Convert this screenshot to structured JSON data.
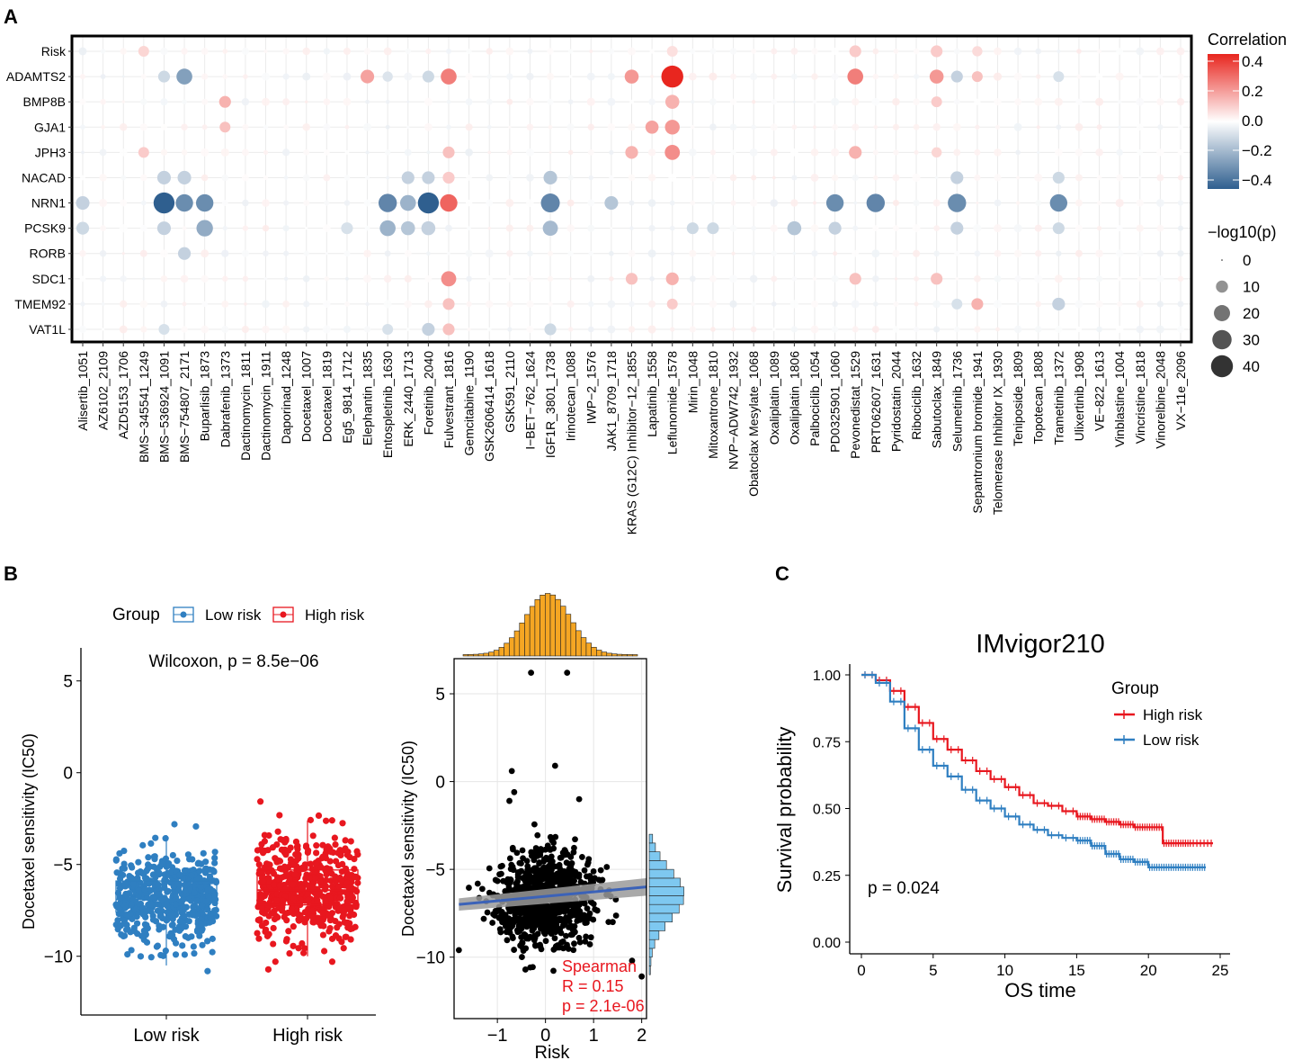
{
  "panels": {
    "a": "A",
    "b": "B",
    "c": "C"
  },
  "chart_data": [
    {
      "id": "A",
      "type": "bubble-heatmap",
      "rows": [
        "Risk",
        "ADAMTS2",
        "BMP8B",
        "GJA1",
        "JPH3",
        "NACAD",
        "NRN1",
        "PCSK9",
        "RORB",
        "SDC1",
        "TMEM92",
        "VAT1L"
      ],
      "columns": [
        "Alisertib_1051",
        "AZ6102_2109",
        "AZD5153_1706",
        "BMS−345541_1249",
        "BMS−536924_1091",
        "BMS−754807_2171",
        "Buparlisib_1873",
        "Dabrafenib_1373",
        "Dactinomycin_1811",
        "Dactinomycin_1911",
        "Daporinad_1248",
        "Docetaxel_1007",
        "Docetaxel_1819",
        "Eg5_9814_1712",
        "Elephantin_1835",
        "Entospletinib_1630",
        "ERK_2440_1713",
        "Foretinib_2040",
        "Fulvestrant_1816",
        "Gemcitabine_1190",
        "GSK2606414_1618",
        "GSK591_2110",
        "I−BET−762_1624",
        "IGF1R_3801_1738",
        "Irinotecan_1088",
        "IWP−2_1576",
        "JAK1_8709_1718",
        "KRAS (G12C) Inhibitor−12_1855",
        "Lapatinib_1558",
        "Leflunomide_1578",
        "Mirin_1048",
        "Mitoxantrone_1810",
        "NVP−ADW742_1932",
        "Obatoclax Mesylate_1068",
        "Oxaliplatin_1089",
        "Oxaliplatin_1806",
        "Palbociclib_1054",
        "PD0325901_1060",
        "Pevonedistat_1529",
        "PRT062607_1631",
        "Pyridostatin_2044",
        "Ribociclib_1632",
        "Sabutoclax_1849",
        "Selumetinib_1736",
        "Sepantronium bromide_1941",
        "Telomerase Inhibitor IX_1930",
        "Teniposide_1809",
        "Topotecan_1808",
        "Trametinib_1372",
        "Ulixertinib_1908",
        "VE−822_1613",
        "Vinblastine_1004",
        "Vincristine_1818",
        "Vinorelbine_2048",
        "VX−11e_2096"
      ],
      "values": [
        {
          "row": 0,
          "col": 3,
          "r": 0.08,
          "p": 8
        },
        {
          "row": 0,
          "col": 38,
          "r": 0.1,
          "p": 10
        },
        {
          "row": 0,
          "col": 42,
          "r": 0.1,
          "p": 10
        },
        {
          "row": 0,
          "col": 29,
          "r": 0.06,
          "p": 8
        },
        {
          "row": 0,
          "col": 44,
          "r": 0.07,
          "p": 7
        },
        {
          "row": 1,
          "col": 4,
          "r": -0.1,
          "p": 10
        },
        {
          "row": 1,
          "col": 5,
          "r": -0.25,
          "p": 20
        },
        {
          "row": 1,
          "col": 14,
          "r": 0.18,
          "p": 14
        },
        {
          "row": 1,
          "col": 15,
          "r": -0.07,
          "p": 7
        },
        {
          "row": 1,
          "col": 17,
          "r": -0.1,
          "p": 10
        },
        {
          "row": 1,
          "col": 18,
          "r": 0.25,
          "p": 20
        },
        {
          "row": 1,
          "col": 27,
          "r": 0.2,
          "p": 15
        },
        {
          "row": 1,
          "col": 29,
          "r": 0.42,
          "p": 42
        },
        {
          "row": 1,
          "col": 38,
          "r": 0.25,
          "p": 20
        },
        {
          "row": 1,
          "col": 42,
          "r": 0.2,
          "p": 15
        },
        {
          "row": 1,
          "col": 43,
          "r": -0.12,
          "p": 10
        },
        {
          "row": 1,
          "col": 44,
          "r": 0.12,
          "p": 8
        },
        {
          "row": 1,
          "col": 48,
          "r": -0.08,
          "p": 8
        },
        {
          "row": 2,
          "col": 7,
          "r": 0.15,
          "p": 10
        },
        {
          "row": 2,
          "col": 29,
          "r": 0.15,
          "p": 15
        },
        {
          "row": 2,
          "col": 42,
          "r": 0.1,
          "p": 8
        },
        {
          "row": 3,
          "col": 7,
          "r": 0.12,
          "p": 8
        },
        {
          "row": 3,
          "col": 28,
          "r": 0.18,
          "p": 13
        },
        {
          "row": 3,
          "col": 29,
          "r": 0.2,
          "p": 17
        },
        {
          "row": 4,
          "col": 3,
          "r": 0.1,
          "p": 8
        },
        {
          "row": 4,
          "col": 18,
          "r": 0.12,
          "p": 10
        },
        {
          "row": 4,
          "col": 27,
          "r": 0.15,
          "p": 12
        },
        {
          "row": 4,
          "col": 29,
          "r": 0.22,
          "p": 18
        },
        {
          "row": 4,
          "col": 38,
          "r": 0.15,
          "p": 12
        },
        {
          "row": 4,
          "col": 42,
          "r": 0.08,
          "p": 7
        },
        {
          "row": 5,
          "col": 4,
          "r": -0.12,
          "p": 14
        },
        {
          "row": 5,
          "col": 5,
          "r": -0.12,
          "p": 14
        },
        {
          "row": 5,
          "col": 16,
          "r": -0.12,
          "p": 12
        },
        {
          "row": 5,
          "col": 17,
          "r": -0.12,
          "p": 12
        },
        {
          "row": 5,
          "col": 18,
          "r": 0.1,
          "p": 10
        },
        {
          "row": 5,
          "col": 23,
          "r": -0.15,
          "p": 14
        },
        {
          "row": 5,
          "col": 43,
          "r": -0.12,
          "p": 12
        },
        {
          "row": 5,
          "col": 48,
          "r": -0.1,
          "p": 10
        },
        {
          "row": 6,
          "col": 0,
          "r": -0.12,
          "p": 14
        },
        {
          "row": 6,
          "col": 4,
          "r": -0.42,
          "p": 38
        },
        {
          "row": 6,
          "col": 5,
          "r": -0.3,
          "p": 25
        },
        {
          "row": 6,
          "col": 6,
          "r": -0.3,
          "p": 25
        },
        {
          "row": 6,
          "col": 15,
          "r": -0.32,
          "p": 28
        },
        {
          "row": 6,
          "col": 16,
          "r": -0.2,
          "p": 20
        },
        {
          "row": 6,
          "col": 17,
          "r": -0.42,
          "p": 38
        },
        {
          "row": 6,
          "col": 18,
          "r": 0.3,
          "p": 25
        },
        {
          "row": 6,
          "col": 23,
          "r": -0.32,
          "p": 30
        },
        {
          "row": 6,
          "col": 26,
          "r": -0.15,
          "p": 14
        },
        {
          "row": 6,
          "col": 37,
          "r": -0.3,
          "p": 25
        },
        {
          "row": 6,
          "col": 39,
          "r": -0.32,
          "p": 28
        },
        {
          "row": 6,
          "col": 43,
          "r": -0.3,
          "p": 28
        },
        {
          "row": 6,
          "col": 48,
          "r": -0.3,
          "p": 25
        },
        {
          "row": 7,
          "col": 0,
          "r": -0.1,
          "p": 12
        },
        {
          "row": 7,
          "col": 4,
          "r": -0.12,
          "p": 14
        },
        {
          "row": 7,
          "col": 6,
          "r": -0.22,
          "p": 22
        },
        {
          "row": 7,
          "col": 13,
          "r": -0.08,
          "p": 10
        },
        {
          "row": 7,
          "col": 15,
          "r": -0.2,
          "p": 20
        },
        {
          "row": 7,
          "col": 16,
          "r": -0.15,
          "p": 15
        },
        {
          "row": 7,
          "col": 17,
          "r": -0.12,
          "p": 15
        },
        {
          "row": 7,
          "col": 23,
          "r": -0.18,
          "p": 18
        },
        {
          "row": 7,
          "col": 30,
          "r": -0.1,
          "p": 10
        },
        {
          "row": 7,
          "col": 31,
          "r": -0.1,
          "p": 10
        },
        {
          "row": 7,
          "col": 35,
          "r": -0.15,
          "p": 15
        },
        {
          "row": 7,
          "col": 37,
          "r": -0.12,
          "p": 12
        },
        {
          "row": 7,
          "col": 43,
          "r": -0.12,
          "p": 12
        },
        {
          "row": 7,
          "col": 48,
          "r": -0.1,
          "p": 10
        },
        {
          "row": 8,
          "col": 5,
          "r": -0.12,
          "p": 12
        },
        {
          "row": 9,
          "col": 18,
          "r": 0.22,
          "p": 18
        },
        {
          "row": 9,
          "col": 27,
          "r": 0.12,
          "p": 10
        },
        {
          "row": 9,
          "col": 29,
          "r": 0.15,
          "p": 12
        },
        {
          "row": 9,
          "col": 38,
          "r": 0.12,
          "p": 10
        },
        {
          "row": 9,
          "col": 42,
          "r": 0.12,
          "p": 10
        },
        {
          "row": 10,
          "col": 18,
          "r": 0.12,
          "p": 10
        },
        {
          "row": 10,
          "col": 29,
          "r": 0.1,
          "p": 8
        },
        {
          "row": 10,
          "col": 43,
          "r": -0.08,
          "p": 8
        },
        {
          "row": 10,
          "col": 44,
          "r": 0.15,
          "p": 10
        },
        {
          "row": 10,
          "col": 48,
          "r": -0.12,
          "p": 12
        },
        {
          "row": 11,
          "col": 4,
          "r": -0.08,
          "p": 8
        },
        {
          "row": 11,
          "col": 15,
          "r": -0.08,
          "p": 8
        },
        {
          "row": 11,
          "col": 17,
          "r": -0.12,
          "p": 12
        },
        {
          "row": 11,
          "col": 18,
          "r": 0.12,
          "p": 10
        },
        {
          "row": 11,
          "col": 23,
          "r": -0.1,
          "p": 10
        }
      ],
      "legend_correlation": {
        "title": "Correlation",
        "ticks": [
          "0.4",
          "0.2",
          "0.0",
          "−0.2",
          "−0.4"
        ]
      },
      "legend_size": {
        "title": "−log10(p)",
        "ticks": [
          "0",
          "10",
          "20",
          "30",
          "40"
        ]
      },
      "colors": {
        "high": "#e8261f",
        "mid": "#ffffff",
        "low": "#2f5f8f"
      }
    },
    {
      "id": "B1",
      "type": "box-jitter",
      "legend_title": "Group",
      "groups": [
        "Low risk",
        "High risk"
      ],
      "colors": [
        "#2f7fc1",
        "#e8171f"
      ],
      "title": "Wilcoxon, p = 8.5e−06",
      "ylabel": "Docetaxel sensitivity (IC50)",
      "yticks": [
        "5",
        "0",
        "−5",
        "−10"
      ],
      "ylim": [
        -13.2,
        6.8
      ],
      "box_stats": [
        {
          "q1": -7.6,
          "median": -6.9,
          "q3": -5.9,
          "min": -10.5,
          "max": -3.4
        },
        {
          "q1": -7.2,
          "median": -6.4,
          "q3": -5.3,
          "min": -10.0,
          "max": -2.6
        }
      ]
    },
    {
      "id": "B2",
      "type": "scatter",
      "xlabel": "Risk",
      "ylabel": "Docetaxel sensitivity (IC50)",
      "xticks": [
        "−1",
        "0",
        "1",
        "2"
      ],
      "yticks": [
        "5",
        "0",
        "−5",
        "−10"
      ],
      "xlim": [
        -1.9,
        2.1
      ],
      "ylim": [
        -13.5,
        7.0
      ],
      "fit": {
        "x": [
          -1.8,
          2.1
        ],
        "y": [
          -7.0,
          -6.0
        ]
      },
      "annotation": [
        "Spearman",
        "R = 0.15",
        "p = 2.1e-06"
      ],
      "annotation_color": "#e8171f",
      "marginal_x_color": "#f5a623",
      "marginal_y_color": "#7ec8f0"
    },
    {
      "id": "C",
      "type": "line",
      "title": "IMvigor210",
      "xlabel": "OS time",
      "ylabel": "Survival probability",
      "xticks": [
        "0",
        "5",
        "10",
        "15",
        "20",
        "25"
      ],
      "yticks": [
        "1.00",
        "0.75",
        "0.50",
        "0.25",
        "0.00"
      ],
      "xlim": [
        0,
        25
      ],
      "ylim": [
        0,
        1
      ],
      "legend_title": "Group",
      "annotation": "p = 0.024",
      "series": [
        {
          "name": "High risk",
          "color": "#e8171f",
          "x": [
            0,
            1,
            2,
            3,
            4,
            5,
            6,
            7,
            8,
            9,
            10,
            11,
            12,
            13,
            14,
            15,
            16,
            17,
            18,
            19,
            20,
            21,
            22,
            23,
            24.5
          ],
          "y": [
            1,
            0.98,
            0.94,
            0.88,
            0.82,
            0.76,
            0.72,
            0.68,
            0.64,
            0.61,
            0.58,
            0.55,
            0.52,
            0.51,
            0.49,
            0.47,
            0.46,
            0.45,
            0.44,
            0.43,
            0.43,
            0.37,
            0.37,
            0.37,
            0.37
          ]
        },
        {
          "name": "Low risk",
          "color": "#2f7fc1",
          "x": [
            0,
            1,
            2,
            3,
            4,
            5,
            6,
            7,
            8,
            9,
            10,
            11,
            12,
            13,
            14,
            15,
            16,
            17,
            18,
            19,
            20,
            21,
            22,
            23,
            24
          ],
          "y": [
            1,
            0.97,
            0.9,
            0.8,
            0.72,
            0.66,
            0.62,
            0.57,
            0.53,
            0.5,
            0.47,
            0.44,
            0.42,
            0.4,
            0.39,
            0.38,
            0.36,
            0.33,
            0.31,
            0.3,
            0.28,
            0.28,
            0.28,
            0.28,
            0.28
          ]
        }
      ]
    }
  ]
}
